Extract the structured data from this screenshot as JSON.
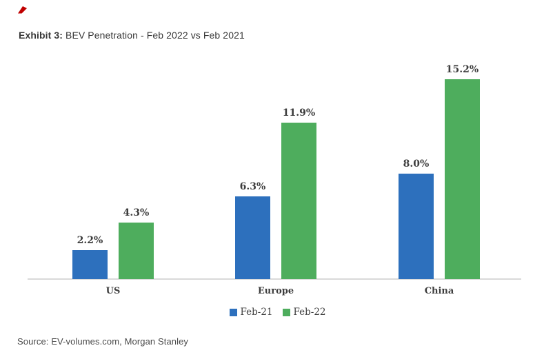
{
  "header": {
    "exhibit_label": "Exhibit 3:",
    "title_rest": " BEV Penetration - Feb 2022 vs Feb 2021"
  },
  "chart_data": {
    "type": "bar",
    "title": "Exhibit 3: BEV Penetration - Feb 2022 vs Feb 2021",
    "categories": [
      "US",
      "Europe",
      "China"
    ],
    "series": [
      {
        "name": "Feb-21",
        "color": "#2d70bd",
        "values": [
          2.2,
          6.3,
          8.0
        ],
        "labels": [
          "2.2%",
          "6.3%",
          "8.0%"
        ]
      },
      {
        "name": "Feb-22",
        "color": "#4ead5d",
        "values": [
          4.3,
          11.9,
          15.2
        ],
        "labels": [
          "4.3%",
          "11.9%",
          "15.2%"
        ]
      }
    ],
    "xlabel": "",
    "ylabel": "",
    "ylim": [
      0,
      16
    ],
    "grid": false,
    "y_axis_visible": false,
    "data_labels": true,
    "legend_position": "bottom",
    "axis_line_color": "#d9d9d9",
    "label_color": "#3d3d3d"
  },
  "decoration": {
    "corner_mark_color": "#c00000"
  },
  "footer": {
    "source": "Source: EV-volumes.com, Morgan Stanley"
  }
}
